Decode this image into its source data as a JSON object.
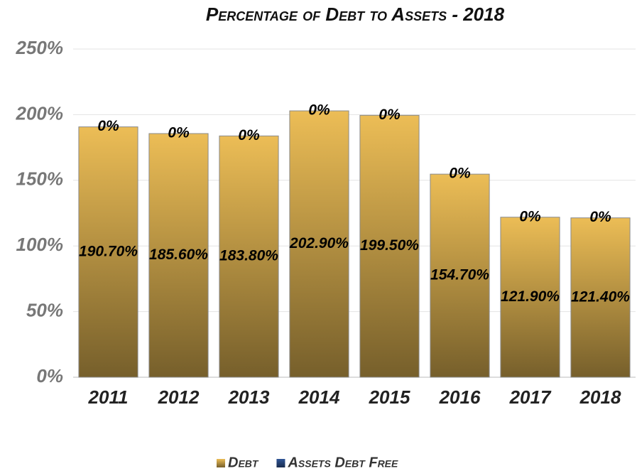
{
  "chart_data": {
    "type": "bar",
    "stacked": true,
    "title": "Percentage of Debt to Assets - 2018",
    "categories": [
      "2011",
      "2012",
      "2013",
      "2014",
      "2015",
      "2016",
      "2017",
      "2018"
    ],
    "series": [
      {
        "name": "Debt",
        "color": "#ecbd56",
        "values": [
          190.7,
          185.6,
          183.8,
          202.9,
          199.5,
          154.7,
          121.9,
          121.4
        ],
        "value_labels": [
          "190.70%",
          "185.60%",
          "183.80%",
          "202.90%",
          "199.50%",
          "154.70%",
          "121.90%",
          "121.40%"
        ]
      },
      {
        "name": "Assets Debt Free",
        "color": "#2f5597",
        "values": [
          0,
          0,
          0,
          0,
          0,
          0,
          0,
          0
        ],
        "value_labels": [
          "0%",
          "0%",
          "0%",
          "0%",
          "0%",
          "0%",
          "0%",
          "0%"
        ]
      }
    ],
    "ylim": [
      0,
      250
    ],
    "yticks": [
      {
        "value": 0,
        "label": "0%"
      },
      {
        "value": 50,
        "label": "50%"
      },
      {
        "value": 100,
        "label": "100%"
      },
      {
        "value": 150,
        "label": "150%"
      },
      {
        "value": 200,
        "label": "200%"
      },
      {
        "value": 250,
        "label": "250%"
      }
    ],
    "grid": true,
    "legend": "bottom"
  }
}
